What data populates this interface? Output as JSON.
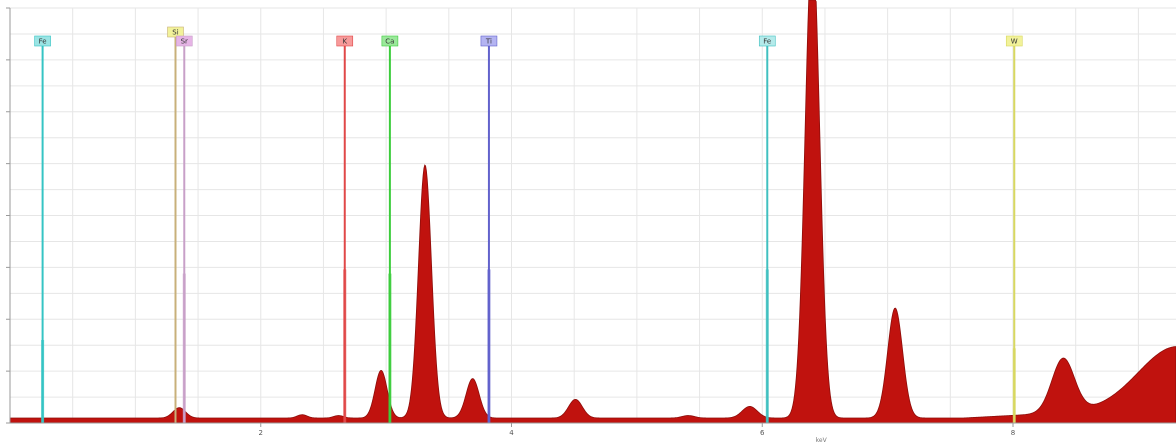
{
  "chart_data": {
    "type": "area",
    "title": "",
    "xlabel": "keV",
    "ylabel": "",
    "xlim": [
      0,
      9.3
    ],
    "ylim": [
      0,
      100
    ],
    "grid": true,
    "x_ticks": [
      2,
      4,
      6,
      8
    ],
    "spectrum_color": "#c0120e",
    "spectrum_peaks": [
      {
        "x": 1.35,
        "height": 2.5,
        "width": 0.05
      },
      {
        "x": 2.33,
        "height": 0.8,
        "width": 0.04
      },
      {
        "x": 2.62,
        "height": 0.6,
        "width": 0.04
      },
      {
        "x": 2.96,
        "height": 11.5,
        "width": 0.048
      },
      {
        "x": 3.31,
        "height": 61.0,
        "width": 0.052
      },
      {
        "x": 3.69,
        "height": 9.5,
        "width": 0.052
      },
      {
        "x": 4.51,
        "height": 4.5,
        "width": 0.055
      },
      {
        "x": 5.41,
        "height": 0.6,
        "width": 0.05
      },
      {
        "x": 5.9,
        "height": 2.8,
        "width": 0.06
      },
      {
        "x": 6.4,
        "height": 115.0,
        "width": 0.058
      },
      {
        "x": 7.06,
        "height": 26.5,
        "width": 0.06
      },
      {
        "x": 8.4,
        "height": 13.0,
        "width": 0.09
      },
      {
        "x": 9.3,
        "height": 14.5,
        "width": 0.3
      }
    ],
    "spectrum_background": 1.2,
    "element_markers": [
      {
        "label": "Fe",
        "x": 0.26,
        "color": "#35c4c4",
        "badge_color": "#9ae4e4",
        "height": 20
      },
      {
        "label": "Si",
        "x": 1.32,
        "color": "#c8b07a",
        "badge_color": "#f2f29a",
        "height": 0
      },
      {
        "label": "Sr",
        "x": 1.39,
        "color": "#c8a0c8",
        "badge_color": "#e6b4e6",
        "height": 36
      },
      {
        "label": "K",
        "x": 2.67,
        "color": "#e04848",
        "badge_color": "#f79a9a",
        "height": 37
      },
      {
        "label": "Ca",
        "x": 3.03,
        "color": "#3ccc3c",
        "badge_color": "#9ae89a",
        "height": 36
      },
      {
        "label": "Ti",
        "x": 3.82,
        "color": "#6262cc",
        "badge_color": "#b4b4f2",
        "height": 37
      },
      {
        "label": "Fe",
        "x": 6.04,
        "color": "#40c0c0",
        "badge_color": "#b4eaea",
        "height": 37
      },
      {
        "label": "W",
        "x": 8.01,
        "color": "#d8d860",
        "badge_color": "#f2f29a",
        "height": 18
      }
    ]
  }
}
